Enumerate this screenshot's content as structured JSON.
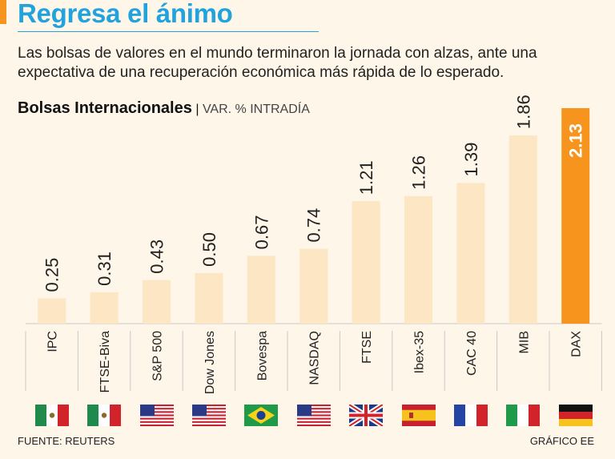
{
  "header": {
    "title": "Regresa el ánimo",
    "description": "Las bolsas de valores en el mundo terminaron la jornada con alzas, ante una expectativa de una recuperación económica más rápida de lo esperado."
  },
  "chart_heading": {
    "title": "Bolsas Internacionales",
    "separator": "|",
    "unit": "VAR. % INTRADÍA"
  },
  "chart_data": {
    "type": "bar",
    "title": "Bolsas Internacionales",
    "subtitle": "VAR. % INTRADÍA",
    "categories": [
      "IPC",
      "FTSE-Biva",
      "S&P 500",
      "Dow Jones",
      "Bovespa",
      "NASDAQ",
      "FTSE",
      "Ibex-35",
      "CAC 40",
      "MIB",
      "DAX"
    ],
    "values": [
      0.25,
      0.31,
      0.43,
      0.5,
      0.67,
      0.74,
      1.21,
      1.26,
      1.39,
      1.86,
      2.13
    ],
    "value_labels": [
      "0.25",
      "0.31",
      "0.43",
      "0.50",
      "0.67",
      "0.74",
      "1.21",
      "1.26",
      "1.39",
      "1.86",
      "2.13"
    ],
    "highlight_category": "DAX",
    "ylim": [
      0,
      2.13
    ],
    "xlabel": "",
    "ylabel": ""
  },
  "flags": [
    {
      "country": "mexico",
      "icon": "mexico-flag-icon"
    },
    {
      "country": "mexico",
      "icon": "mexico-flag-icon"
    },
    {
      "country": "usa",
      "icon": "usa-flag-icon"
    },
    {
      "country": "usa",
      "icon": "usa-flag-icon"
    },
    {
      "country": "brazil",
      "icon": "brazil-flag-icon"
    },
    {
      "country": "usa",
      "icon": "usa-flag-icon"
    },
    {
      "country": "uk",
      "icon": "uk-flag-icon"
    },
    {
      "country": "spain",
      "icon": "spain-flag-icon"
    },
    {
      "country": "france",
      "icon": "france-flag-icon"
    },
    {
      "country": "italy",
      "icon": "italy-flag-icon"
    },
    {
      "country": "germany",
      "icon": "germany-flag-icon"
    }
  ],
  "footer": {
    "source": "FUENTE: REUTERS",
    "credit": "GRÁFICO EE"
  },
  "colors": {
    "accent": "#f7941d",
    "headline": "#23a3de",
    "bar": "#fde6c3",
    "bar_highlight": "#f7941d",
    "label": "#222222",
    "label_highlight": "#ffffff",
    "background": "#fdf6e9",
    "grid": "#c9c9c9"
  }
}
